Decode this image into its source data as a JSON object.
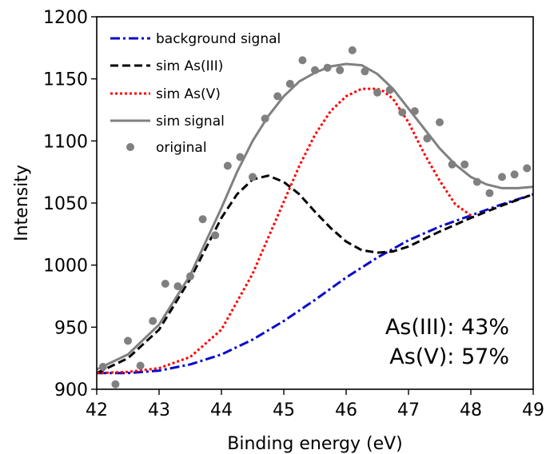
{
  "chart_data": {
    "type": "line",
    "title": "",
    "xlabel": "Binding energy (eV)",
    "ylabel": "Intensity",
    "xlim": [
      42,
      49
    ],
    "ylim": [
      900,
      1200
    ],
    "xticks": [
      42,
      43,
      44,
      45,
      46,
      47,
      48,
      49
    ],
    "yticks": [
      900,
      950,
      1000,
      1050,
      1100,
      1150,
      1200
    ],
    "grid": false,
    "legend_position": "top-left",
    "legend": [
      {
        "label": "background signal",
        "color": "#0a0ac8",
        "style": "dashdot",
        "kind": "line"
      },
      {
        "label": "sim As(III)",
        "color": "#000000",
        "style": "dashed",
        "kind": "line"
      },
      {
        "label": "sim As(V)",
        "color": "#ff0000",
        "style": "dotted",
        "kind": "line"
      },
      {
        "label": "sim signal",
        "color": "#808080",
        "style": "solid",
        "kind": "line"
      },
      {
        "label": "original",
        "color": "#808080",
        "style": "marker",
        "kind": "marker"
      }
    ],
    "annotations": [
      "As(III): 43%",
      "As(V): 57%"
    ],
    "series": [
      {
        "name": "background signal",
        "color": "#0a0ac8",
        "style": "dashdot",
        "x": [
          42.0,
          42.5,
          43.0,
          43.5,
          44.0,
          44.5,
          45.0,
          45.5,
          46.0,
          46.5,
          47.0,
          47.5,
          48.0,
          48.5,
          49.0
        ],
        "y": [
          913,
          913,
          915,
          920,
          928,
          940,
          955,
          972,
          990,
          1006,
          1020,
          1031,
          1040,
          1049,
          1057
        ]
      },
      {
        "name": "sim As(III)",
        "color": "#000000",
        "style": "dashed",
        "x": [
          42.0,
          42.5,
          43.0,
          43.5,
          44.0,
          44.25,
          44.5,
          44.75,
          45.0,
          45.25,
          45.5,
          45.75,
          46.0,
          46.25,
          46.5,
          46.75,
          47.0,
          47.5,
          48.0,
          48.5,
          49.0
        ],
        "y": [
          913,
          925,
          948,
          989,
          1038,
          1057,
          1069,
          1072,
          1067,
          1057,
          1043,
          1030,
          1019,
          1012,
          1010,
          1011,
          1015,
          1027,
          1038,
          1048,
          1057
        ]
      },
      {
        "name": "sim As(V)",
        "color": "#ff0000",
        "style": "dotted",
        "x": [
          42.0,
          42.5,
          43.0,
          43.5,
          44.0,
          44.5,
          45.0,
          45.25,
          45.5,
          45.75,
          46.0,
          46.25,
          46.5,
          46.6,
          46.75,
          47.0,
          47.25,
          47.5,
          47.75,
          48.0
        ],
        "y": [
          913,
          914,
          917,
          926,
          948,
          993,
          1051,
          1080,
          1105,
          1124,
          1136,
          1142,
          1142,
          1140,
          1134,
          1115,
          1090,
          1068,
          1049,
          1040
        ]
      },
      {
        "name": "sim signal",
        "color": "#808080",
        "style": "solid",
        "x": [
          42.0,
          42.5,
          43.0,
          43.5,
          44.0,
          44.25,
          44.5,
          44.75,
          45.0,
          45.25,
          45.5,
          45.75,
          46.0,
          46.25,
          46.5,
          46.75,
          47.0,
          47.25,
          47.5,
          47.75,
          48.0,
          48.25,
          48.5,
          48.75,
          49.0
        ],
        "y": [
          916,
          928,
          952,
          992,
          1046,
          1075,
          1100,
          1120,
          1136,
          1148,
          1155,
          1160,
          1162,
          1161,
          1154,
          1142,
          1126,
          1110,
          1094,
          1081,
          1071,
          1065,
          1062,
          1062,
          1063
        ]
      }
    ],
    "scatter": {
      "name": "original",
      "color": "#808080",
      "x": [
        42.1,
        42.3,
        42.5,
        42.7,
        42.9,
        43.1,
        43.3,
        43.5,
        43.7,
        43.9,
        44.1,
        44.3,
        44.5,
        44.7,
        44.9,
        45.1,
        45.3,
        45.5,
        45.7,
        45.9,
        46.1,
        46.3,
        46.5,
        46.7,
        46.9,
        47.1,
        47.3,
        47.5,
        47.7,
        47.9,
        48.1,
        48.3,
        48.5,
        48.7,
        48.9
      ],
      "y": [
        918,
        904,
        939,
        919,
        955,
        985,
        983,
        991,
        1037,
        1024,
        1080,
        1087,
        1071,
        1118,
        1136,
        1146,
        1165,
        1157,
        1159,
        1157,
        1173,
        1156,
        1139,
        1141,
        1123,
        1124,
        1102,
        1115,
        1081,
        1081,
        1067,
        1058,
        1071,
        1073,
        1078
      ]
    }
  }
}
